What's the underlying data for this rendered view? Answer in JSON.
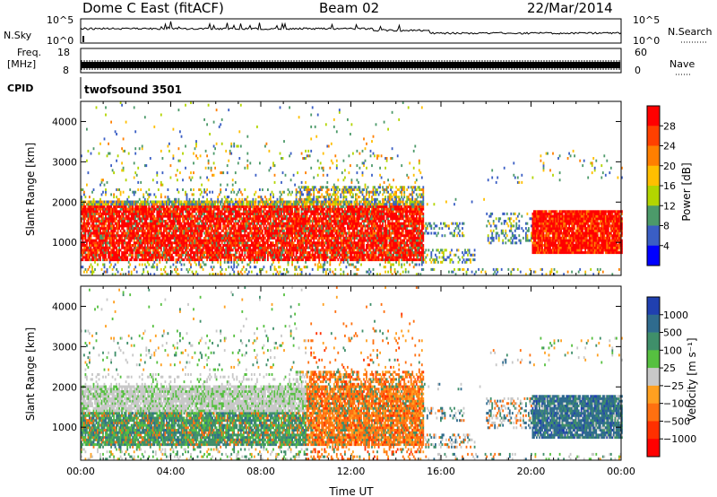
{
  "header": {
    "station": "Dome C East (fitACF)",
    "beam": "Beam 02",
    "date": "22/Mar/2014"
  },
  "status_panel": {
    "nsky_label": "N.Sky",
    "nsky_ticks": [
      "10^5",
      "10^0"
    ],
    "nsearch_label": "N.Search",
    "nsearch_ticks": [
      "10^5",
      "10^0"
    ],
    "freq_label_1": "Freq.",
    "freq_label_2": "[MHz]",
    "freq_ticks": [
      "18",
      "8"
    ],
    "nave_label": "Nave",
    "nave_ticks": [
      "60",
      "0"
    ],
    "cpid_label": "CPID",
    "cpid_value": "twofsound 3501"
  },
  "chart_data": [
    {
      "type": "heatmap",
      "name": "power",
      "xlabel": "",
      "ylabel": "Slant Range [km]",
      "xlim": [
        0,
        24
      ],
      "ylim": [
        180,
        4500
      ],
      "y_ticks": [
        "1000",
        "2000",
        "3000",
        "4000"
      ],
      "colorbar": {
        "label": "Power [dB]",
        "ticks": [
          "28",
          "24",
          "20",
          "16",
          "12",
          "8",
          "4"
        ],
        "colors": [
          "#ff0000",
          "#ff4000",
          "#ff7f00",
          "#ffbf00",
          "#b2d500",
          "#4c9a6a",
          "#3a5ec4",
          "#0000ff"
        ]
      }
    },
    {
      "type": "heatmap",
      "name": "velocity",
      "xlabel": "Time UT",
      "ylabel": "Slant Range [km]",
      "xlim": [
        0,
        24
      ],
      "ylim": [
        180,
        4500
      ],
      "x_ticks": [
        "00:00",
        "04:00",
        "08:00",
        "12:00",
        "16:00",
        "20:00",
        "00:00"
      ],
      "y_ticks": [
        "1000",
        "2000",
        "3000",
        "4000"
      ],
      "colorbar": {
        "label": "Velocity [m s⁻¹]",
        "ticks": [
          "1000",
          "500",
          "100",
          "25",
          "−25",
          "−100",
          "−500",
          "−1000"
        ],
        "colors": [
          "#2040b0",
          "#2f6b8e",
          "#3f8f6a",
          "#56c040",
          "#c8c8c8",
          "#ffa020",
          "#ff7010",
          "#ff3000",
          "#ff0000"
        ]
      }
    }
  ]
}
